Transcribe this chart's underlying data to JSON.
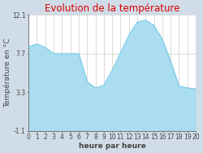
{
  "title": "Evolution de la température",
  "xlabel": "heure par heure",
  "ylabel": "Température en °C",
  "ylim": [
    -1.1,
    12.1
  ],
  "yticks": [
    -1.1,
    3.3,
    7.7,
    12.1
  ],
  "hours": [
    0,
    1,
    2,
    3,
    4,
    5,
    6,
    7,
    8,
    9,
    10,
    11,
    12,
    13,
    14,
    15,
    16,
    17,
    18,
    19,
    20
  ],
  "temperatures": [
    8.5,
    8.8,
    8.4,
    7.7,
    7.7,
    7.7,
    7.7,
    4.5,
    3.8,
    4.1,
    5.8,
    7.8,
    9.8,
    11.3,
    11.5,
    10.9,
    9.3,
    6.8,
    4.0,
    3.8,
    3.7
  ],
  "line_color": "#7ecde8",
  "fill_color": "#aaddf0",
  "title_color": "#dd0000",
  "bg_color": "#d0dde8",
  "plot_bg_color": "#ffffff",
  "grid_color": "#cccccc",
  "axis_color": "#666666",
  "tick_color": "#444444",
  "title_fontsize": 8.5,
  "label_fontsize": 6.5,
  "tick_fontsize": 5.5
}
